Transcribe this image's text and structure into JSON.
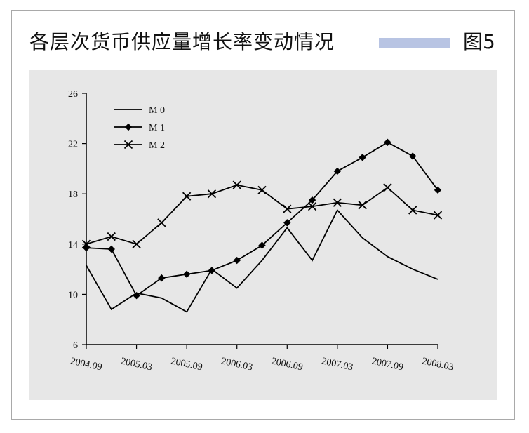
{
  "title": "各层次货币供应量增长率变动情况",
  "figure_label": "图5",
  "colors": {
    "title_bar": "#b8c4e3",
    "plot_bg": "#e7e7e7",
    "line": "#000000"
  },
  "chart_data": {
    "type": "line",
    "x": [
      "2004.09",
      "2004.12",
      "2005.03",
      "2005.06",
      "2005.09",
      "2005.12",
      "2006.03",
      "2006.06",
      "2006.09",
      "2006.12",
      "2007.03",
      "2007.06",
      "2007.09",
      "2007.12",
      "2008.03"
    ],
    "x_tick_labels": [
      "2004.09",
      "2005.03",
      "2005.09",
      "2006.03",
      "2006.09",
      "2007.03",
      "2007.09",
      "2008.03"
    ],
    "ylim": [
      6,
      26
    ],
    "y_ticks": [
      6,
      10,
      14,
      18,
      22,
      26
    ],
    "legend_position": "top-left",
    "series": [
      {
        "name": "M 0",
        "marker": "none",
        "values": [
          12.3,
          8.8,
          10.1,
          9.7,
          8.6,
          12.0,
          10.5,
          12.7,
          15.3,
          12.7,
          16.7,
          14.5,
          13.0,
          12.0,
          11.2
        ]
      },
      {
        "name": "M 1",
        "marker": "diamond",
        "values": [
          13.7,
          13.6,
          9.9,
          11.3,
          11.6,
          11.9,
          12.7,
          13.9,
          15.7,
          17.5,
          19.8,
          20.9,
          22.1,
          21.0,
          18.3
        ]
      },
      {
        "name": "M 2",
        "marker": "x",
        "values": [
          14.0,
          14.6,
          14.0,
          15.7,
          17.8,
          18.0,
          18.7,
          18.3,
          16.8,
          17.0,
          17.3,
          17.1,
          18.5,
          16.7,
          16.3
        ]
      }
    ]
  }
}
